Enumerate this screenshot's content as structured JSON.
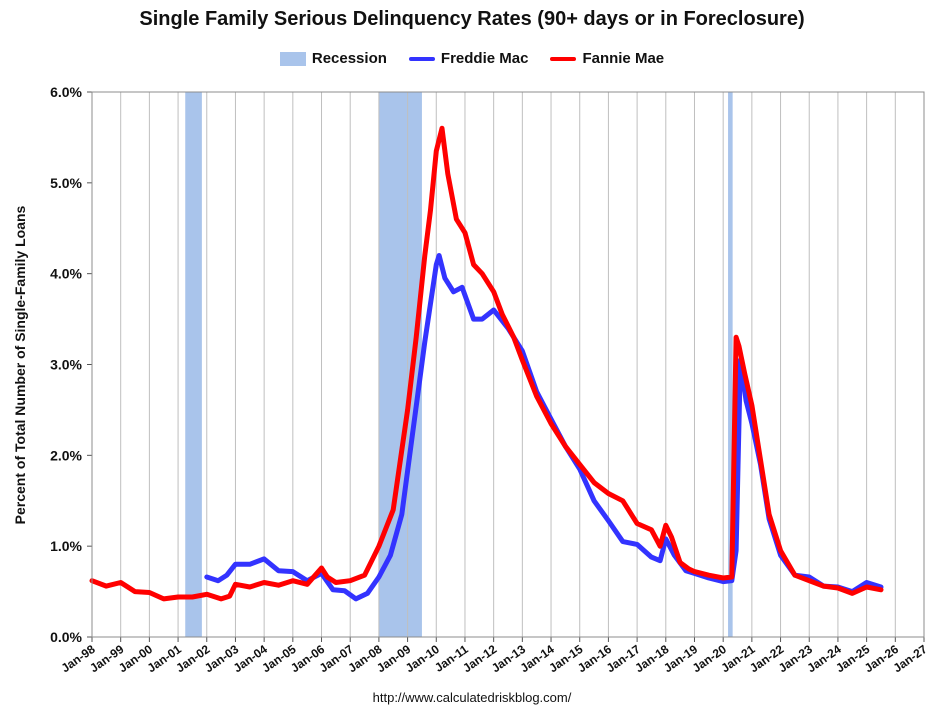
{
  "chart_data": {
    "type": "line",
    "title": "Single Family Serious Delinquency Rates (90+ days or in Foreclosure)",
    "xlabel": "",
    "ylabel": "Percent of Total Number of Single-Family Loans",
    "ylim": [
      0,
      6
    ],
    "y_ticks": [
      "0.0%",
      "1.0%",
      "2.0%",
      "3.0%",
      "4.0%",
      "5.0%",
      "6.0%"
    ],
    "x_range": [
      1998.0,
      2027.0
    ],
    "x_ticks": [
      "Jan-98",
      "Jan-99",
      "Jan-00",
      "Jan-01",
      "Jan-02",
      "Jan-03",
      "Jan-04",
      "Jan-05",
      "Jan-06",
      "Jan-07",
      "Jan-08",
      "Jan-09",
      "Jan-10",
      "Jan-11",
      "Jan-12",
      "Jan-13",
      "Jan-14",
      "Jan-15",
      "Jan-16",
      "Jan-17",
      "Jan-18",
      "Jan-19",
      "Jan-20",
      "Jan-21",
      "Jan-22",
      "Jan-23",
      "Jan-24",
      "Jan-25",
      "Jan-26",
      "Jan-27"
    ],
    "grid": "vertical",
    "legend": "top-center",
    "legend_labels": {
      "recession": "Recession",
      "freddie": "Freddie Mac",
      "fannie": "Fannie Mae"
    },
    "recessions": [
      {
        "start": 2001.25,
        "end": 2001.83
      },
      {
        "start": 2008.0,
        "end": 2009.5
      },
      {
        "start": 2020.17,
        "end": 2020.33
      }
    ],
    "series": [
      {
        "name": "Freddie Mac",
        "color": "#3333ff",
        "x": [
          2002.0,
          2002.4,
          2002.7,
          2003.0,
          2003.5,
          2004.0,
          2004.5,
          2005.0,
          2005.5,
          2006.0,
          2006.4,
          2006.8,
          2007.2,
          2007.6,
          2008.0,
          2008.4,
          2008.8,
          2009.2,
          2009.6,
          2010.0,
          2010.1,
          2010.3,
          2010.6,
          2010.9,
          2011.3,
          2011.6,
          2012.0,
          2012.5,
          2013.0,
          2013.5,
          2014.0,
          2014.5,
          2015.0,
          2015.5,
          2016.0,
          2016.5,
          2017.0,
          2017.5,
          2017.8,
          2018.0,
          2018.3,
          2018.7,
          2019.0,
          2019.5,
          2020.0,
          2020.3,
          2020.45,
          2020.6,
          2020.8,
          2021.0,
          2021.3,
          2021.6,
          2022.0,
          2022.5,
          2023.0,
          2023.5,
          2024.0,
          2024.5,
          2025.0,
          2025.5
        ],
        "values": [
          0.66,
          0.62,
          0.68,
          0.8,
          0.8,
          0.86,
          0.73,
          0.72,
          0.62,
          0.7,
          0.52,
          0.51,
          0.42,
          0.48,
          0.66,
          0.9,
          1.35,
          2.3,
          3.25,
          4.1,
          4.2,
          3.95,
          3.8,
          3.85,
          3.5,
          3.5,
          3.6,
          3.4,
          3.15,
          2.7,
          2.4,
          2.1,
          1.85,
          1.5,
          1.28,
          1.05,
          1.02,
          0.88,
          0.84,
          1.08,
          0.9,
          0.73,
          0.7,
          0.65,
          0.61,
          0.62,
          0.95,
          3.05,
          2.6,
          2.35,
          1.9,
          1.3,
          0.9,
          0.68,
          0.66,
          0.56,
          0.55,
          0.5,
          0.6,
          0.55
        ]
      },
      {
        "name": "Fannie Mae",
        "color": "#ff0000",
        "x": [
          1998.0,
          1998.5,
          1999.0,
          1999.5,
          2000.0,
          2000.5,
          2001.0,
          2001.5,
          2002.0,
          2002.5,
          2002.8,
          2003.0,
          2003.5,
          2004.0,
          2004.5,
          2005.0,
          2005.5,
          2006.0,
          2006.2,
          2006.5,
          2007.0,
          2007.5,
          2008.0,
          2008.5,
          2009.0,
          2009.3,
          2009.6,
          2009.8,
          2010.0,
          2010.2,
          2010.4,
          2010.7,
          2011.0,
          2011.3,
          2011.6,
          2012.0,
          2012.3,
          2012.7,
          2013.0,
          2013.5,
          2014.0,
          2014.5,
          2015.0,
          2015.5,
          2016.0,
          2016.5,
          2017.0,
          2017.5,
          2017.8,
          2018.0,
          2018.2,
          2018.5,
          2018.8,
          2019.0,
          2019.5,
          2020.0,
          2020.3,
          2020.45,
          2020.55,
          2020.75,
          2021.0,
          2021.3,
          2021.6,
          2022.0,
          2022.5,
          2023.0,
          2023.5,
          2024.0,
          2024.5,
          2025.0,
          2025.5
        ],
        "values": [
          0.62,
          0.56,
          0.6,
          0.5,
          0.49,
          0.42,
          0.44,
          0.44,
          0.47,
          0.42,
          0.45,
          0.58,
          0.55,
          0.6,
          0.57,
          0.62,
          0.58,
          0.76,
          0.66,
          0.6,
          0.62,
          0.68,
          1.0,
          1.4,
          2.5,
          3.3,
          4.2,
          4.7,
          5.35,
          5.6,
          5.1,
          4.6,
          4.45,
          4.1,
          4.0,
          3.8,
          3.55,
          3.3,
          3.05,
          2.65,
          2.35,
          2.1,
          1.9,
          1.7,
          1.58,
          1.5,
          1.25,
          1.18,
          1.0,
          1.23,
          1.1,
          0.82,
          0.75,
          0.72,
          0.68,
          0.65,
          0.66,
          3.3,
          3.2,
          2.9,
          2.55,
          1.95,
          1.35,
          0.95,
          0.68,
          0.62,
          0.56,
          0.54,
          0.48,
          0.55,
          0.52
        ]
      }
    ],
    "source": "http://www.calculatedriskblog.com/",
    "colors": {
      "recession": "#a9c4eb",
      "freddie": "#3333ff",
      "fannie": "#ff0000",
      "grid": "#bfbfbf"
    }
  }
}
